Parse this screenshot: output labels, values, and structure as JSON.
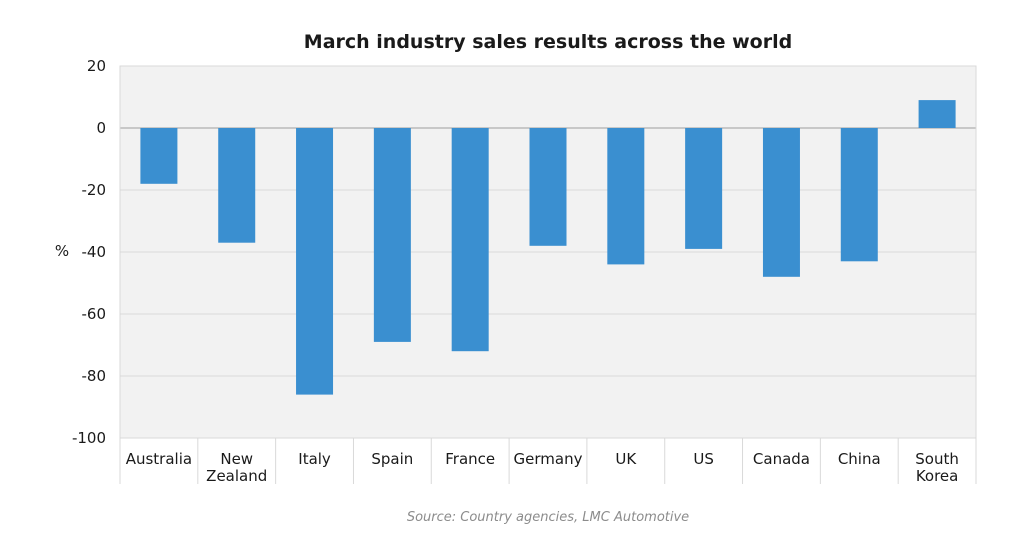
{
  "chart_data": {
    "type": "bar",
    "title": "March industry sales results across the world",
    "ylabel": "%",
    "xlabel": "",
    "categories": [
      "Australia",
      "New Zealand",
      "Italy",
      "Spain",
      "France",
      "Germany",
      "UK",
      "US",
      "Canada",
      "China",
      "South Korea"
    ],
    "category_lines": [
      [
        "Australia"
      ],
      [
        "New",
        "Zealand"
      ],
      [
        "Italy"
      ],
      [
        "Spain"
      ],
      [
        "France"
      ],
      [
        "Germany"
      ],
      [
        "UK"
      ],
      [
        "US"
      ],
      [
        "Canada"
      ],
      [
        "China"
      ],
      [
        "South",
        "Korea"
      ]
    ],
    "values": [
      -18,
      -37,
      -86,
      -69,
      -72,
      -38,
      -44,
      -39,
      -48,
      -43,
      9
    ],
    "ylim": [
      -100,
      20
    ],
    "yticks": [
      20,
      0,
      -20,
      -40,
      -60,
      -80,
      -100
    ],
    "grid": true,
    "bar_color": "#3a8fd0",
    "plot_background": "#f2f2f2",
    "grid_color": "#d9d9d9",
    "source": "Source: Country agencies, LMC Automotive"
  }
}
